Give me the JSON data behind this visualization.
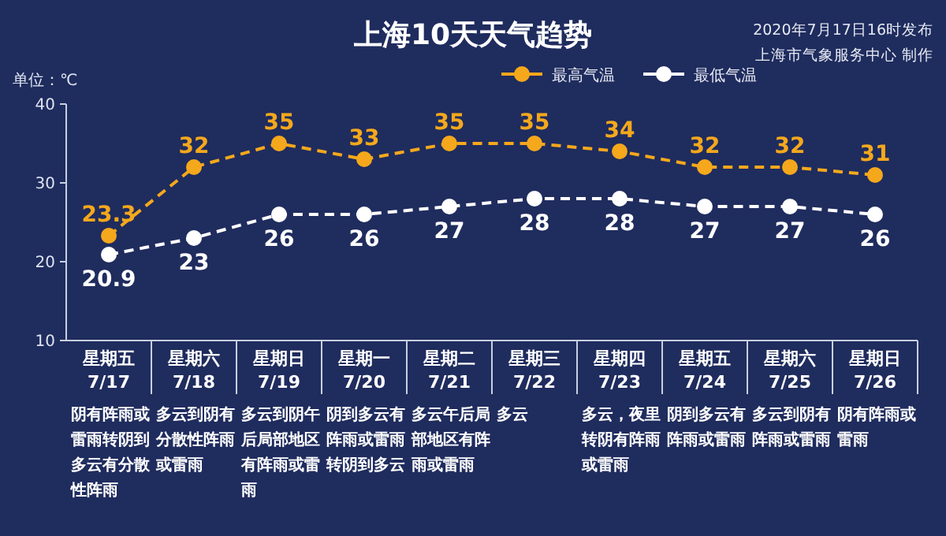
{
  "chart_data": {
    "type": "line",
    "title": "上海10天天气趋势",
    "ylabel": "单位：℃",
    "categories": [
      "星期五\n7/17",
      "星期六\n7/18",
      "星期日\n7/19",
      "星期一\n7/20",
      "星期二\n7/21",
      "星期三\n7/22",
      "星期四\n7/23",
      "星期五\n7/24",
      "星期六\n7/25",
      "星期日\n7/26"
    ],
    "series": [
      {
        "name": "最高气温",
        "color": "#f5a81c",
        "values": [
          23.3,
          32,
          35,
          33,
          35,
          35,
          34,
          32,
          32,
          31
        ]
      },
      {
        "name": "最低气温",
        "color": "#ffffff",
        "values": [
          20.9,
          23,
          26,
          26,
          27,
          28,
          28,
          27,
          27,
          26
        ]
      }
    ],
    "ylim": [
      10,
      40
    ],
    "yticks": [
      10,
      20,
      30,
      40
    ],
    "grid": false,
    "legend": "top right",
    "marker": "circle",
    "line_style": "dashed",
    "data_labels": true,
    "annotations": [
      "2020年7月17日16时发布",
      "上海市气象服务中心 制作",
      "阴有阵雨或雷雨转阴到多云有分散性阵雨",
      "多云到阴有分散性阵雨或雷雨",
      "多云到阴午后局部地区有阵雨或雷雨",
      "阴到多云有阵雨或雷雨转阴到多云",
      "多云午后局部地区有阵雨或雷雨",
      "多云",
      "多云，夜里转阴有阵雨或雷雨",
      "阴到多云有阵雨或雷雨",
      "多云到阴有阵雨或雷雨",
      "阴有阵雨或雷雨"
    ]
  }
}
